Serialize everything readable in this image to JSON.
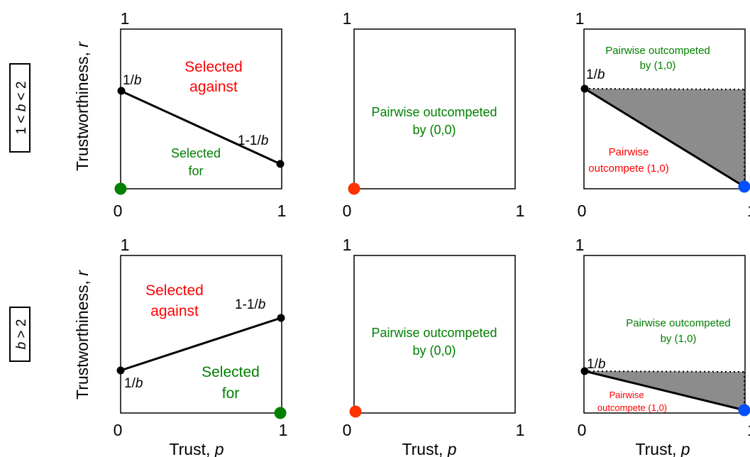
{
  "row_labels": {
    "row1": {
      "pre": "1 < ",
      "var": "b",
      "post": " < 2"
    },
    "row2": {
      "pre": "",
      "var": "b",
      "post": " > 2"
    }
  },
  "axis": {
    "ylabel_text": "Trustworthiness, ",
    "ylabel_var": "r",
    "xlabel_text": "Trust, ",
    "xlabel_var": "p",
    "tick_zero": "0",
    "tick_one": "1"
  },
  "colors": {
    "red": "#ff0000",
    "green": "#008000",
    "blue": "#0050ff",
    "dot_red": "#ff3300",
    "shade": "#8c8c8c",
    "black": "#000000"
  },
  "panels": {
    "p11": {
      "label_1b_pre": "1/",
      "label_1b_var": "b",
      "label_11b_pre": "1-1/",
      "label_11b_var": "b",
      "against_1": "Selected",
      "against_2": "against",
      "for_1": "Selected",
      "for_2": "for"
    },
    "p12": {
      "line1": "Pairwise outcompeted",
      "line2": "by (0,0)"
    },
    "p13": {
      "top_1": "Pairwise outcompeted",
      "top_2": "by (1,0)",
      "label_1b_pre": "1/",
      "label_1b_var": "b",
      "bottom_1": "Pairwise",
      "bottom_2": "outcompete (1,0)"
    },
    "p21": {
      "against_1": "Selected",
      "against_2": "against",
      "label_11b_pre": "1-1/",
      "label_11b_var": "b",
      "label_1b_pre": "1/",
      "label_1b_var": "b",
      "for_1": "Selected",
      "for_2": "for"
    },
    "p22": {
      "line1": "Pairwise outcompeted",
      "line2": "by (0,0)"
    },
    "p23": {
      "top_1": "Pairwise outcompeted",
      "top_2": "by (1,0)",
      "label_1b_pre": "1/",
      "label_1b_var": "b",
      "bottom_1": "Pairwise",
      "bottom_2": "outcompete (1,0)"
    }
  }
}
